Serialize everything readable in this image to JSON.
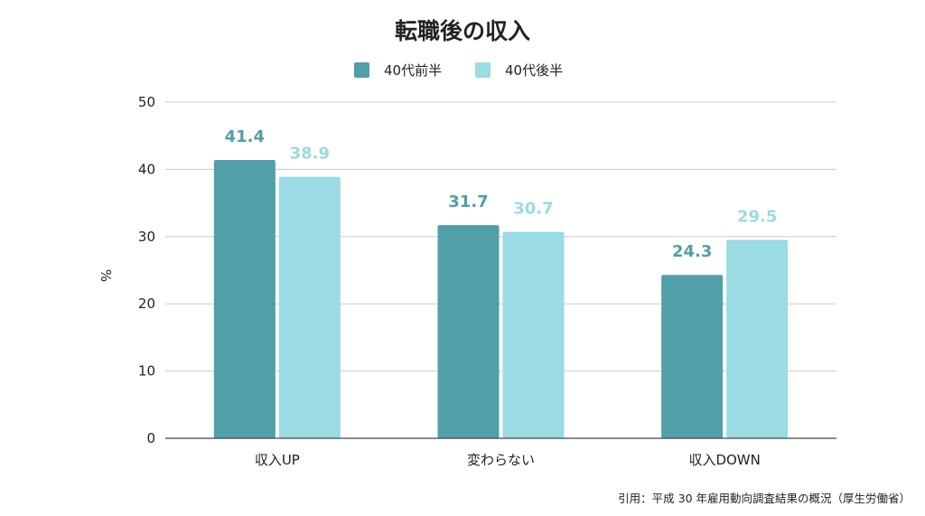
{
  "chart_data": {
    "type": "bar",
    "title": "転職後の収入",
    "categories": [
      "収入UP",
      "変わらない",
      "収入DOWN"
    ],
    "series": [
      {
        "name": "40代前半",
        "values": [
          41.4,
          31.7,
          24.3
        ],
        "color": "#519FA8"
      },
      {
        "name": "40代後半",
        "values": [
          38.9,
          30.7,
          29.5
        ],
        "color": "#9ADBE4"
      }
    ],
    "xlabel": "",
    "ylabel": "%",
    "ylim": [
      0,
      50
    ],
    "yticks": [
      0,
      10,
      20,
      30,
      40,
      50
    ],
    "grid": true,
    "legend_position": "top-center",
    "data_labels": true
  },
  "source_note": "引用：平成 30 年雇用動向調査結果の概況（厚生労働省）"
}
